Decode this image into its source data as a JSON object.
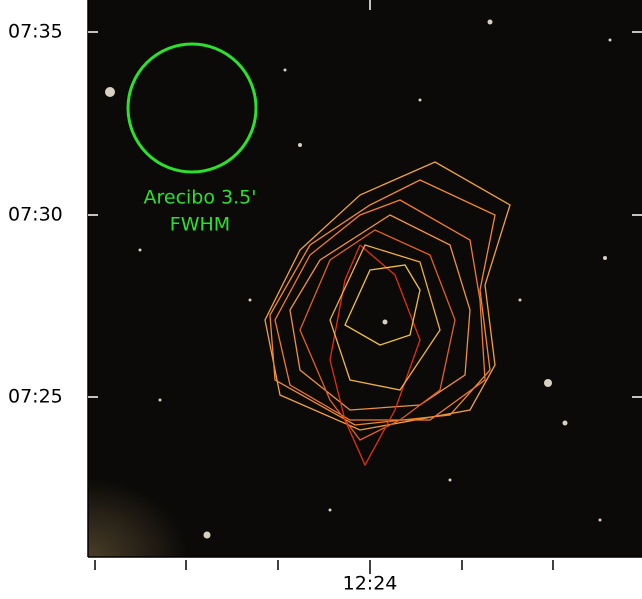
{
  "axes": {
    "y_labels": [
      "07:35",
      "07:30",
      "07:25"
    ],
    "x_label": "12:24"
  },
  "annotation": {
    "line1": "Arecibo 3.5'",
    "line2": "FWHM"
  }
}
